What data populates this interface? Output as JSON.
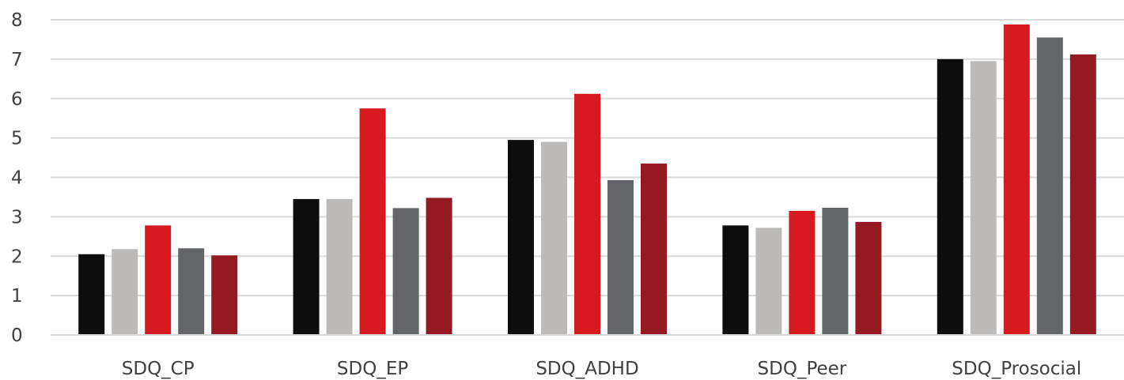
{
  "chart_data": {
    "type": "bar",
    "title": "",
    "xlabel": "",
    "ylabel": "",
    "ylim": [
      0,
      8
    ],
    "yticks": [
      0,
      1,
      2,
      3,
      4,
      5,
      6,
      7,
      8
    ],
    "grid": true,
    "legend": "none",
    "categories": [
      "SDQ_CP",
      "SDQ_EP",
      "SDQ_ADHD",
      "SDQ_Peer",
      "SDQ_Prosocial"
    ],
    "series": [
      {
        "color": "#0d0d0d",
        "values": [
          2.05,
          3.45,
          4.95,
          2.78,
          7.0
        ]
      },
      {
        "color": "#bcbbb9",
        "values": [
          2.18,
          3.45,
          4.9,
          2.72,
          6.95
        ]
      },
      {
        "color": "#d71920",
        "values": [
          2.78,
          5.75,
          6.12,
          3.15,
          7.88
        ]
      },
      {
        "color": "#646569",
        "values": [
          2.2,
          3.22,
          3.93,
          3.23,
          7.55
        ]
      },
      {
        "color": "#951921",
        "values": [
          2.02,
          3.48,
          4.35,
          2.87,
          7.12
        ]
      }
    ]
  }
}
